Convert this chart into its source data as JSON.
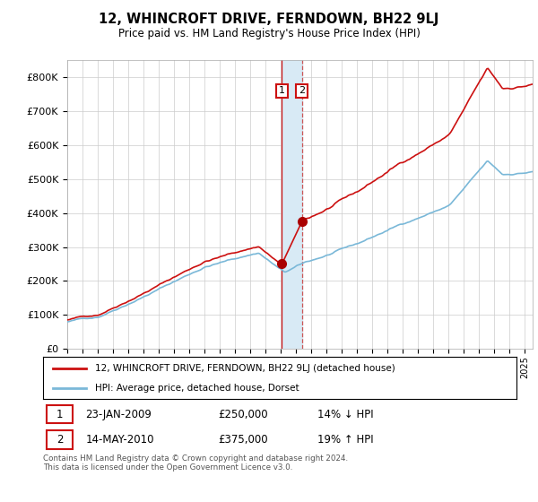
{
  "title": "12, WHINCROFT DRIVE, FERNDOWN, BH22 9LJ",
  "subtitle": "Price paid vs. HM Land Registry's House Price Index (HPI)",
  "hpi_label": "HPI: Average price, detached house, Dorset",
  "property_label": "12, WHINCROFT DRIVE, FERNDOWN, BH22 9LJ (detached house)",
  "transaction1": {
    "number": 1,
    "date": "23-JAN-2009",
    "price": "£250,000",
    "hpi_change": "14% ↓ HPI"
  },
  "transaction2": {
    "number": 2,
    "date": "14-MAY-2010",
    "price": "£375,000",
    "hpi_change": "19% ↑ HPI"
  },
  "footer": "Contains HM Land Registry data © Crown copyright and database right 2024.\nThis data is licensed under the Open Government Licence v3.0.",
  "hpi_color": "#7ab8d8",
  "property_color": "#cc1111",
  "vline1_color": "#cc1111",
  "vline2_color": "#cc5555",
  "shade_color": "#d8eaf5",
  "dot_color": "#aa0000",
  "background_color": "#ffffff",
  "grid_color": "#cccccc",
  "ylim": [
    0,
    850000
  ],
  "yticks": [
    0,
    100000,
    200000,
    300000,
    400000,
    500000,
    600000,
    700000,
    800000
  ],
  "t1_year": 2009.07,
  "t2_year": 2010.38,
  "t1_price": 250000,
  "t2_price": 375000
}
